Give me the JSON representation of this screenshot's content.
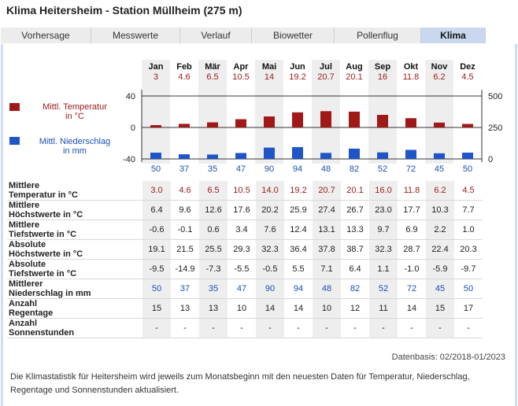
{
  "title": "Klima Heitersheim - Station Müllheim (275 m)",
  "tabs": [
    {
      "label": "Vorhersage",
      "active": false
    },
    {
      "label": "Messwerte",
      "active": false
    },
    {
      "label": "Verlauf",
      "active": false
    },
    {
      "label": "Biowetter",
      "active": false
    },
    {
      "label": "Pollenflug",
      "active": false
    },
    {
      "label": "Klima",
      "active": true
    }
  ],
  "legend": {
    "temp_line1": "Mittl. Temperatur",
    "temp_line2": "in °C",
    "precip_line1": "Mittl. Niederschlag",
    "precip_line2": "in mm",
    "temp_color": "#a01818",
    "precip_color": "#1f55c7"
  },
  "chart_data": {
    "type": "bar",
    "categories": [
      "Jan",
      "Feb",
      "Mär",
      "Apr",
      "Mai",
      "Jun",
      "Jul",
      "Aug",
      "Sep",
      "Okt",
      "Nov",
      "Dez"
    ],
    "series": [
      {
        "name": "Mittl. Temperatur in °C",
        "values": [
          3.0,
          4.6,
          6.5,
          10.5,
          14.0,
          19.2,
          20.7,
          20.1,
          16.0,
          11.8,
          6.2,
          4.5
        ],
        "axis": "left"
      },
      {
        "name": "Mittl. Niederschlag in mm",
        "values": [
          50,
          37,
          35,
          47,
          90,
          94,
          48,
          82,
          52,
          72,
          45,
          50
        ],
        "axis": "right"
      }
    ],
    "y_left_ticks": [
      "40",
      "0",
      "-40"
    ],
    "y_left_range": [
      -40,
      40
    ],
    "y_right_ticks": [
      "500",
      "250",
      "0"
    ],
    "y_right_range": [
      0,
      500
    ]
  },
  "table": {
    "rows": [
      {
        "label1": "Mittlere",
        "label2": "Temperatur in °C",
        "color": "red",
        "values": [
          "3.0",
          "4.6",
          "6.5",
          "10.5",
          "14.0",
          "19.2",
          "20.7",
          "20.1",
          "16.0",
          "11.8",
          "6.2",
          "4.5"
        ]
      },
      {
        "label1": "Mittlere",
        "label2": "Höchstwerte in °C",
        "color": "",
        "values": [
          "6.4",
          "9.6",
          "12.6",
          "17.6",
          "20.2",
          "25.9",
          "27.4",
          "26.7",
          "23.0",
          "17.7",
          "10.3",
          "7.7"
        ]
      },
      {
        "label1": "Mittlere",
        "label2": "Tiefstwerte in °C",
        "color": "",
        "values": [
          "-0.6",
          "-0.1",
          "0.6",
          "3.4",
          "7.6",
          "12.4",
          "13.1",
          "13.3",
          "9.7",
          "6.9",
          "2.2",
          "1.0"
        ]
      },
      {
        "label1": "Absolute",
        "label2": "Höchstwerte in °C",
        "color": "",
        "values": [
          "19.1",
          "21.5",
          "25.5",
          "29.3",
          "32.3",
          "36.4",
          "37.8",
          "38.7",
          "32.3",
          "28.7",
          "22.4",
          "20.3"
        ]
      },
      {
        "label1": "Absolute",
        "label2": "Tiefstwerte in °C",
        "color": "",
        "values": [
          "-9.5",
          "-14.9",
          "-7.3",
          "-5.5",
          "-0.5",
          "5.5",
          "7.1",
          "6.4",
          "1.1",
          "-1.0",
          "-5.9",
          "-9.7"
        ]
      },
      {
        "label1": "Mittlerer",
        "label2": "Niederschlag in mm",
        "color": "blue",
        "values": [
          "50",
          "37",
          "35",
          "47",
          "90",
          "94",
          "48",
          "82",
          "52",
          "72",
          "45",
          "50"
        ]
      },
      {
        "label1": "Anzahl",
        "label2": "Regentage",
        "color": "",
        "values": [
          "15",
          "13",
          "13",
          "10",
          "14",
          "14",
          "10",
          "12",
          "11",
          "14",
          "15",
          "17"
        ]
      },
      {
        "label1": "Anzahl",
        "label2": "Sonnenstunden",
        "color": "",
        "values": [
          "-",
          "-",
          "-",
          "-",
          "-",
          "-",
          "-",
          "-",
          "-",
          "-",
          "-",
          "-"
        ]
      }
    ]
  },
  "basis": "Datenbasis: 02/2018-01/2023",
  "footnote": "Die Klimastatistik für Heitersheim wird jeweils zum Monatsbeginn mit den neuesten Daten für Temperatur, Niederschlag, Regentage und Sonnenstunden aktualisiert."
}
